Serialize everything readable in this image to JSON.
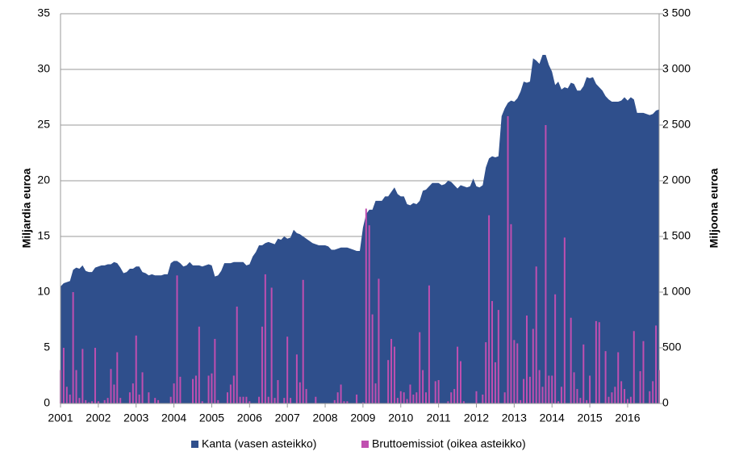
{
  "chart_data": {
    "type": "combo",
    "y_label": "Miljardia euroa",
    "y2_label": "Miljoona euroa",
    "categories": [
      "2001",
      null,
      null,
      null,
      null,
      null,
      null,
      null,
      null,
      null,
      null,
      null,
      "2002",
      null,
      null,
      null,
      null,
      null,
      null,
      null,
      null,
      null,
      null,
      null,
      "2003",
      null,
      null,
      null,
      null,
      null,
      null,
      null,
      null,
      null,
      null,
      null,
      "2004",
      null,
      null,
      null,
      null,
      null,
      null,
      null,
      null,
      null,
      null,
      null,
      "2005",
      null,
      null,
      null,
      null,
      null,
      null,
      null,
      null,
      null,
      null,
      null,
      "2006",
      null,
      null,
      null,
      null,
      null,
      null,
      null,
      null,
      null,
      null,
      null,
      "2007",
      null,
      null,
      null,
      null,
      null,
      null,
      null,
      null,
      null,
      null,
      null,
      "2008",
      null,
      null,
      null,
      null,
      null,
      null,
      null,
      null,
      null,
      null,
      null,
      "2009",
      null,
      null,
      null,
      null,
      null,
      null,
      null,
      null,
      null,
      null,
      null,
      "2010",
      null,
      null,
      null,
      null,
      null,
      null,
      null,
      null,
      null,
      null,
      null,
      "2011",
      null,
      null,
      null,
      null,
      null,
      null,
      null,
      null,
      null,
      null,
      null,
      "2012",
      null,
      null,
      null,
      null,
      null,
      null,
      null,
      null,
      null,
      null,
      null,
      "2013",
      null,
      null,
      null,
      null,
      null,
      null,
      null,
      null,
      null,
      null,
      null,
      "2014",
      null,
      null,
      null,
      null,
      null,
      null,
      null,
      null,
      null,
      null,
      null,
      "2015",
      null,
      null,
      null,
      null,
      null,
      null,
      null,
      null,
      null,
      null,
      null,
      "2016",
      null,
      null,
      null,
      null,
      null,
      null,
      null,
      null,
      null,
      null
    ],
    "series": [
      {
        "name": "Kanta (vasen asteikko)",
        "type": "area",
        "color": "#2f4f8c",
        "values": [
          10.5,
          10.8,
          10.9,
          11.0,
          12.0,
          12.2,
          12.1,
          12.4,
          11.9,
          11.8,
          11.8,
          12.2,
          12.3,
          12.4,
          12.4,
          12.5,
          12.5,
          12.7,
          12.6,
          12.2,
          11.7,
          11.8,
          12.1,
          12.1,
          12.3,
          12.3,
          11.8,
          11.7,
          11.5,
          11.6,
          11.5,
          11.5,
          11.5,
          11.6,
          11.6,
          12.6,
          12.8,
          12.8,
          12.6,
          12.3,
          12.4,
          12.7,
          12.4,
          12.4,
          12.4,
          12.3,
          12.4,
          12.5,
          12.4,
          11.4,
          11.5,
          11.9,
          12.6,
          12.6,
          12.6,
          12.7,
          12.7,
          12.7,
          12.7,
          12.4,
          12.5,
          13.2,
          13.6,
          14.2,
          14.2,
          14.4,
          14.5,
          14.4,
          14.3,
          14.8,
          14.7,
          15.0,
          14.8,
          14.9,
          15.6,
          15.3,
          15.2,
          15.0,
          14.8,
          14.6,
          14.4,
          14.3,
          14.2,
          14.2,
          14.2,
          14.1,
          13.8,
          13.8,
          13.9,
          14.0,
          14.0,
          14.0,
          13.9,
          13.8,
          13.7,
          13.7,
          15.8,
          17.0,
          17.4,
          17.4,
          18.2,
          18.2,
          18.2,
          18.6,
          18.6,
          19.0,
          19.4,
          18.8,
          18.6,
          18.6,
          17.9,
          17.8,
          18.0,
          17.9,
          18.2,
          19.1,
          19.2,
          19.5,
          19.8,
          19.8,
          19.8,
          19.6,
          19.7,
          20.0,
          19.9,
          19.6,
          19.3,
          19.6,
          19.5,
          19.4,
          19.5,
          20.2,
          19.5,
          19.4,
          19.6,
          21.2,
          22.0,
          22.2,
          22.1,
          22.2,
          25.8,
          26.5,
          27.0,
          27.2,
          27.1,
          27.4,
          28.0,
          28.9,
          28.8,
          28.9,
          31.0,
          30.8,
          30.5,
          31.3,
          31.3,
          30.4,
          29.8,
          28.6,
          28.9,
          28.2,
          28.4,
          28.3,
          28.8,
          28.7,
          28.1,
          28.1,
          28.5,
          29.3,
          29.2,
          29.3,
          28.7,
          28.4,
          28.1,
          27.6,
          27.3,
          27.1,
          27.1,
          27.1,
          27.2,
          27.5,
          27.2,
          27.5,
          27.3,
          26.1,
          26.1,
          26.1,
          26.0,
          25.9,
          26.0,
          26.3,
          26.4
        ]
      },
      {
        "name": "Bruttoemissiot (oikea asteikko)",
        "type": "bar",
        "axis": "y2",
        "color": "#c04fb0",
        "values": [
          300,
          500,
          150,
          80,
          1000,
          300,
          50,
          490,
          30,
          10,
          20,
          500,
          20,
          0,
          30,
          50,
          310,
          170,
          460,
          50,
          0,
          0,
          100,
          180,
          610,
          80,
          280,
          0,
          100,
          0,
          50,
          30,
          0,
          0,
          0,
          60,
          180,
          1150,
          240,
          0,
          0,
          0,
          220,
          250,
          690,
          20,
          0,
          250,
          270,
          580,
          30,
          0,
          0,
          100,
          170,
          250,
          870,
          60,
          60,
          60,
          20,
          0,
          0,
          60,
          690,
          1160,
          60,
          1040,
          50,
          210,
          0,
          50,
          600,
          50,
          0,
          440,
          190,
          1110,
          130,
          0,
          0,
          60,
          0,
          0,
          0,
          0,
          0,
          30,
          100,
          170,
          20,
          20,
          0,
          0,
          80,
          0,
          10,
          1750,
          1600,
          800,
          180,
          1120,
          0,
          0,
          390,
          580,
          510,
          50,
          110,
          100,
          40,
          170,
          80,
          100,
          640,
          300,
          100,
          1060,
          0,
          200,
          210,
          0,
          0,
          20,
          100,
          130,
          510,
          380,
          20,
          0,
          0,
          0,
          110,
          0,
          80,
          550,
          1690,
          920,
          370,
          840,
          0,
          100,
          2580,
          1610,
          570,
          540,
          30,
          220,
          790,
          240,
          670,
          1230,
          300,
          150,
          2500,
          250,
          250,
          980,
          20,
          150,
          1490,
          0,
          770,
          280,
          130,
          50,
          530,
          30,
          250,
          0,
          740,
          730,
          0,
          470,
          60,
          100,
          150,
          460,
          200,
          130,
          40,
          60,
          650,
          0,
          290,
          560,
          0,
          110,
          200,
          700,
          300
        ]
      }
    ],
    "ylim": [
      0,
      35
    ],
    "yticks": [
      0,
      5,
      10,
      15,
      20,
      25,
      30,
      35
    ],
    "y2lim": [
      0,
      3500
    ],
    "y2ticks": [
      0,
      500,
      {
        "value": 1000,
        "label": "1 000"
      },
      {
        "value": 1500,
        "label": "1 500"
      },
      {
        "value": 2000,
        "label": "2 000"
      },
      {
        "value": 2500,
        "label": "2 500"
      },
      {
        "value": 3000,
        "label": "3 000"
      },
      {
        "value": 3500,
        "label": "3 500"
      }
    ],
    "grid": true,
    "legend": "bottom"
  }
}
